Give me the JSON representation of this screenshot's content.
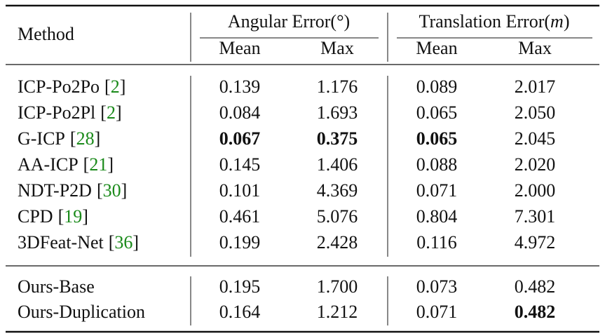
{
  "table": {
    "header": {
      "method": "Method",
      "groups": [
        {
          "text": "Angular Error(",
          "unit": "°",
          "close": ")"
        },
        {
          "text": "Translation Error(",
          "unit": "m",
          "close": ")"
        }
      ],
      "sub": [
        "Mean",
        "Max",
        "Mean",
        "Max"
      ]
    },
    "cite_brackets": [
      "[",
      "]"
    ],
    "rows": [
      {
        "method": "ICP-Po2Po",
        "cite": "2",
        "values": [
          "0.139",
          "1.176",
          "0.089",
          "2.017"
        ],
        "bold": []
      },
      {
        "method": "ICP-Po2Pl",
        "cite": "2",
        "values": [
          "0.084",
          "1.693",
          "0.065",
          "2.050"
        ],
        "bold": []
      },
      {
        "method": "G-ICP",
        "cite": "28",
        "values": [
          "0.067",
          "0.375",
          "0.065",
          "2.045"
        ],
        "bold": [
          0,
          1,
          2
        ]
      },
      {
        "method": "AA-ICP",
        "cite": "21",
        "values": [
          "0.145",
          "1.406",
          "0.088",
          "2.020"
        ],
        "bold": []
      },
      {
        "method": "NDT-P2D",
        "cite": "30",
        "values": [
          "0.101",
          "4.369",
          "0.071",
          "2.000"
        ],
        "bold": []
      },
      {
        "method": "CPD",
        "cite": "19",
        "values": [
          "0.461",
          "5.076",
          "0.804",
          "7.301"
        ],
        "bold": []
      },
      {
        "method": "3DFeat-Net",
        "cite": "36",
        "values": [
          "0.199",
          "2.428",
          "0.116",
          "4.972"
        ],
        "bold": []
      },
      {
        "method": "Ours-Base",
        "values": [
          "0.195",
          "1.700",
          "0.073",
          "0.482"
        ],
        "bold": []
      },
      {
        "method": "Ours-Duplication",
        "values": [
          "0.164",
          "1.212",
          "0.071",
          "0.482"
        ],
        "bold": [
          3
        ]
      }
    ]
  }
}
